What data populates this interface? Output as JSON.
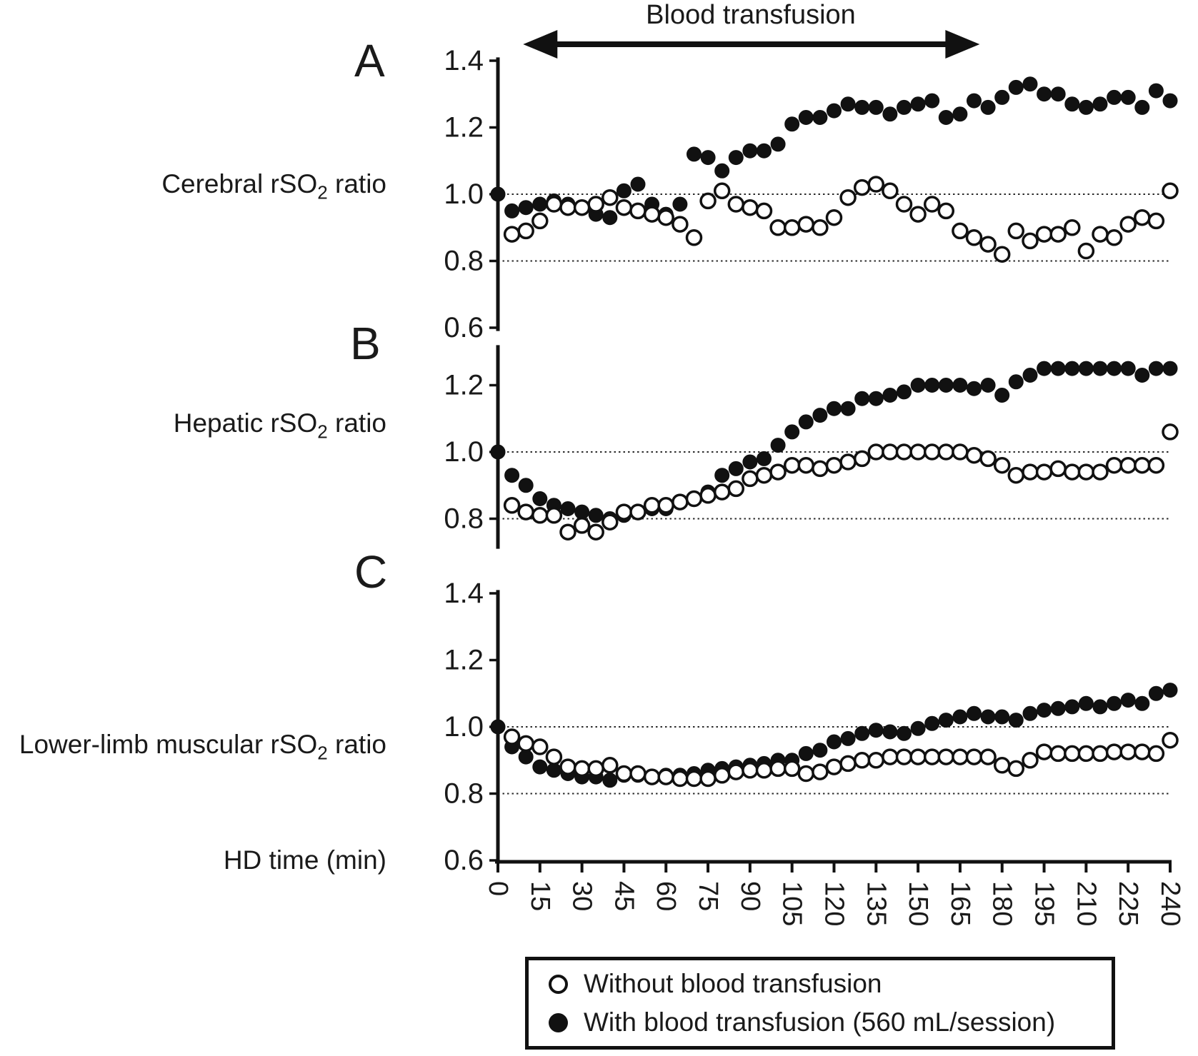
{
  "figure": {
    "transfusion_arrow": {
      "label": "Blood transfusion",
      "span_min": [
        9,
        172
      ]
    },
    "panels": [
      {
        "letter": "A",
        "row_label_pre": "Cerebral rSO",
        "row_label_sub": "2",
        "row_label_post": " ratio"
      },
      {
        "letter": "B",
        "row_label_pre": "Hepatic rSO",
        "row_label_sub": "2",
        "row_label_post": " ratio"
      },
      {
        "letter": "C",
        "row_label_pre": "Lower-limb muscular rSO",
        "row_label_sub": "2",
        "row_label_post": " ratio"
      }
    ],
    "x_axis_label": "HD time (min)",
    "legend": {
      "items": [
        {
          "marker": "open-circle",
          "label": "Without blood transfusion"
        },
        {
          "marker": "filled-circle",
          "label": "With blood transfusion (560 mL/session)"
        }
      ]
    }
  },
  "chart_data": [
    {
      "type": "scatter",
      "panel": "A",
      "title": "Cerebral rSO2 ratio",
      "xlabel": "HD time (min)",
      "x_ticks": [
        0,
        15,
        30,
        45,
        60,
        75,
        90,
        105,
        120,
        135,
        150,
        165,
        180,
        195,
        210,
        225,
        240
      ],
      "y_ticks": [
        1.4,
        1.2,
        1.0,
        0.8,
        0.6
      ],
      "ylim": [
        0.59,
        1.41
      ],
      "ref_lines": [
        1.0,
        0.8
      ],
      "grid": false,
      "legend_position": "bottom",
      "series": [
        {
          "name": "With blood transfusion (560 mL/session)",
          "marker": "filled",
          "start_min": 0,
          "step_min": 5,
          "values": [
            1.0,
            0.95,
            0.96,
            0.97,
            0.98,
            0.97,
            0.96,
            0.94,
            0.93,
            1.01,
            1.03,
            0.97,
            0.94,
            0.97,
            1.12,
            1.11,
            1.07,
            1.11,
            1.13,
            1.13,
            1.15,
            1.21,
            1.23,
            1.23,
            1.25,
            1.27,
            1.26,
            1.26,
            1.24,
            1.26,
            1.27,
            1.28,
            1.23,
            1.24,
            1.28,
            1.26,
            1.29,
            1.32,
            1.33,
            1.3,
            1.3,
            1.27,
            1.26,
            1.27,
            1.29,
            1.29,
            1.26,
            1.31,
            1.28
          ]
        },
        {
          "name": "Without blood transfusion",
          "marker": "open",
          "start_min": 5,
          "step_min": 5,
          "values": [
            0.88,
            0.89,
            0.92,
            0.97,
            0.96,
            0.96,
            0.97,
            0.99,
            0.96,
            0.95,
            0.94,
            0.93,
            0.91,
            0.87,
            0.98,
            1.01,
            0.97,
            0.96,
            0.95,
            0.9,
            0.9,
            0.91,
            0.9,
            0.93,
            0.99,
            1.02,
            1.03,
            1.01,
            0.97,
            0.94,
            0.97,
            0.95,
            0.89,
            0.87,
            0.85,
            0.82,
            0.89,
            0.86,
            0.88,
            0.88,
            0.9,
            0.83,
            0.88,
            0.87,
            0.91,
            0.93,
            0.92,
            1.01
          ]
        }
      ]
    },
    {
      "type": "scatter",
      "panel": "B",
      "title": "Hepatic rSO2 ratio",
      "xlabel": "HD time (min)",
      "x_ticks": [
        0,
        15,
        30,
        45,
        60,
        75,
        90,
        105,
        120,
        135,
        150,
        165,
        180,
        195,
        210,
        225,
        240
      ],
      "y_ticks": [
        1.2,
        1.0,
        0.8
      ],
      "ylim": [
        0.71,
        1.32
      ],
      "ref_lines": [
        1.0,
        0.8
      ],
      "grid": false,
      "legend_position": "bottom",
      "series": [
        {
          "name": "With blood transfusion (560 mL/session)",
          "marker": "filled",
          "start_min": 0,
          "step_min": 5,
          "values": [
            1.0,
            0.93,
            0.9,
            0.86,
            0.84,
            0.83,
            0.82,
            0.81,
            0.8,
            0.81,
            0.82,
            0.83,
            0.83,
            0.85,
            0.86,
            0.88,
            0.93,
            0.95,
            0.97,
            0.98,
            1.02,
            1.06,
            1.09,
            1.11,
            1.13,
            1.13,
            1.16,
            1.16,
            1.17,
            1.18,
            1.2,
            1.2,
            1.2,
            1.2,
            1.19,
            1.2,
            1.17,
            1.21,
            1.23,
            1.25,
            1.25,
            1.25,
            1.25,
            1.25,
            1.25,
            1.25,
            1.23,
            1.25,
            1.25
          ]
        },
        {
          "name": "Without blood transfusion",
          "marker": "open",
          "start_min": 5,
          "step_min": 5,
          "values": [
            0.84,
            0.82,
            0.81,
            0.81,
            0.76,
            0.78,
            0.76,
            0.79,
            0.82,
            0.82,
            0.84,
            0.84,
            0.85,
            0.86,
            0.87,
            0.88,
            0.89,
            0.92,
            0.93,
            0.94,
            0.96,
            0.96,
            0.95,
            0.96,
            0.97,
            0.98,
            1.0,
            1.0,
            1.0,
            1.0,
            1.0,
            1.0,
            1.0,
            0.99,
            0.98,
            0.96,
            0.93,
            0.94,
            0.94,
            0.95,
            0.94,
            0.94,
            0.94,
            0.96,
            0.96,
            0.96,
            0.96,
            1.06
          ]
        }
      ]
    },
    {
      "type": "scatter",
      "panel": "C",
      "title": "Lower-limb muscular rSO2 ratio",
      "xlabel": "HD time (min)",
      "x_ticks": [
        0,
        15,
        30,
        45,
        60,
        75,
        90,
        105,
        120,
        135,
        150,
        165,
        180,
        195,
        210,
        225,
        240
      ],
      "y_ticks": [
        1.4,
        1.2,
        1.0,
        0.8,
        0.6
      ],
      "ylim": [
        0.59,
        1.41
      ],
      "ref_lines": [
        1.0,
        0.8
      ],
      "grid": false,
      "legend_position": "bottom",
      "series": [
        {
          "name": "With blood transfusion (560 mL/session)",
          "marker": "filled",
          "start_min": 0,
          "step_min": 5,
          "values": [
            1.0,
            0.94,
            0.91,
            0.88,
            0.87,
            0.86,
            0.85,
            0.85,
            0.84,
            0.855,
            0.855,
            0.85,
            0.855,
            0.855,
            0.86,
            0.87,
            0.875,
            0.88,
            0.885,
            0.89,
            0.9,
            0.9,
            0.92,
            0.93,
            0.955,
            0.965,
            0.98,
            0.99,
            0.985,
            0.98,
            0.995,
            1.01,
            1.02,
            1.03,
            1.04,
            1.03,
            1.03,
            1.02,
            1.04,
            1.05,
            1.055,
            1.06,
            1.07,
            1.06,
            1.07,
            1.08,
            1.07,
            1.1,
            1.11
          ]
        },
        {
          "name": "Without blood transfusion",
          "marker": "open",
          "start_min": 5,
          "step_min": 5,
          "values": [
            0.97,
            0.95,
            0.94,
            0.91,
            0.88,
            0.875,
            0.875,
            0.885,
            0.86,
            0.86,
            0.85,
            0.85,
            0.845,
            0.845,
            0.845,
            0.855,
            0.865,
            0.87,
            0.87,
            0.875,
            0.875,
            0.86,
            0.865,
            0.88,
            0.89,
            0.9,
            0.9,
            0.91,
            0.91,
            0.91,
            0.91,
            0.91,
            0.91,
            0.91,
            0.91,
            0.885,
            0.875,
            0.9,
            0.925,
            0.92,
            0.92,
            0.92,
            0.92,
            0.925,
            0.925,
            0.925,
            0.92,
            0.96
          ]
        }
      ]
    }
  ]
}
